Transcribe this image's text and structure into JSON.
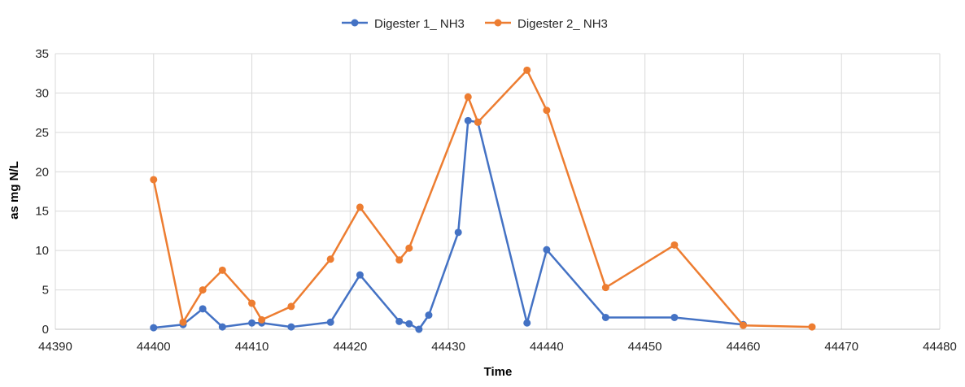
{
  "chart_data": {
    "type": "scatter",
    "title": "",
    "xlabel": "Time",
    "ylabel": "as mg N/L",
    "xlim": [
      44390,
      44480
    ],
    "ylim": [
      0,
      35
    ],
    "xticks": [
      44390,
      44400,
      44410,
      44420,
      44430,
      44440,
      44450,
      44460,
      44470,
      44480
    ],
    "yticks": [
      0,
      5,
      10,
      15,
      20,
      25,
      30,
      35
    ],
    "grid": true,
    "legend_position": "top",
    "series": [
      {
        "name": "Digester 1_ NH3",
        "color": "#4472C4",
        "x": [
          44400,
          44403,
          44405,
          44407,
          44410,
          44411,
          44414,
          44418,
          44421,
          44425,
          44426,
          44427,
          44428,
          44431,
          44432,
          44433,
          44438,
          44440,
          44446,
          44453,
          44460
        ],
        "y": [
          0.2,
          0.6,
          2.6,
          0.3,
          0.8,
          0.8,
          0.3,
          0.9,
          6.9,
          1.0,
          0.7,
          0.0,
          1.8,
          12.3,
          26.5,
          26.3,
          0.8,
          10.1,
          1.5,
          1.5,
          0.6
        ]
      },
      {
        "name": "Digester 2_ NH3",
        "color": "#ED7D31",
        "x": [
          44400,
          44403,
          44405,
          44407,
          44410,
          44411,
          44414,
          44418,
          44421,
          44425,
          44426,
          44432,
          44433,
          44438,
          44440,
          44446,
          44453,
          44460,
          44467
        ],
        "y": [
          19.0,
          0.9,
          5.0,
          7.5,
          3.3,
          1.2,
          2.9,
          8.9,
          15.5,
          8.8,
          10.3,
          29.5,
          26.3,
          32.9,
          27.8,
          5.3,
          10.7,
          0.5,
          0.3
        ]
      }
    ]
  }
}
